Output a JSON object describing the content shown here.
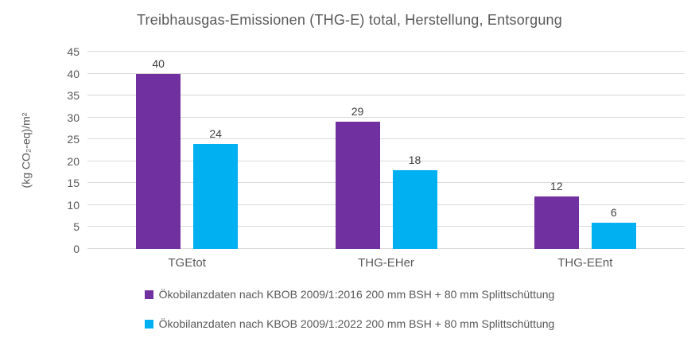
{
  "chart_data": {
    "type": "bar",
    "title": "Treibhausgas-Emissionen (THG-E) total, Herstellung, Entsorgung",
    "xlabel": "",
    "ylabel": "(kg CO₂-eq)/m²",
    "ylim": [
      0,
      45
    ],
    "yticks": [
      0,
      5,
      10,
      15,
      20,
      25,
      30,
      35,
      40,
      45
    ],
    "grid": true,
    "data_labels": true,
    "legend_position": "bottom",
    "categories": [
      "TGEtot",
      "THG-EHer",
      "THG-EEnt"
    ],
    "series": [
      {
        "name": "Ökobilanzdaten nach KBOB 2009/1:2016 200 mm BSH + 80 mm Splittschüttung",
        "color": "#7030A0",
        "values": [
          40,
          29,
          12
        ]
      },
      {
        "name": "Ökobilanzdaten nach KBOB 2009/1:2022 200 mm BSH + 80 mm Splittschüttung",
        "color": "#00B0F0",
        "values": [
          24,
          18,
          6
        ]
      }
    ],
    "colors": {
      "background": "#FFFFFF",
      "gridline": "#D9D9D9",
      "axis_text": "#595959",
      "title_text": "#595959",
      "data_label_text": "#404040"
    }
  }
}
